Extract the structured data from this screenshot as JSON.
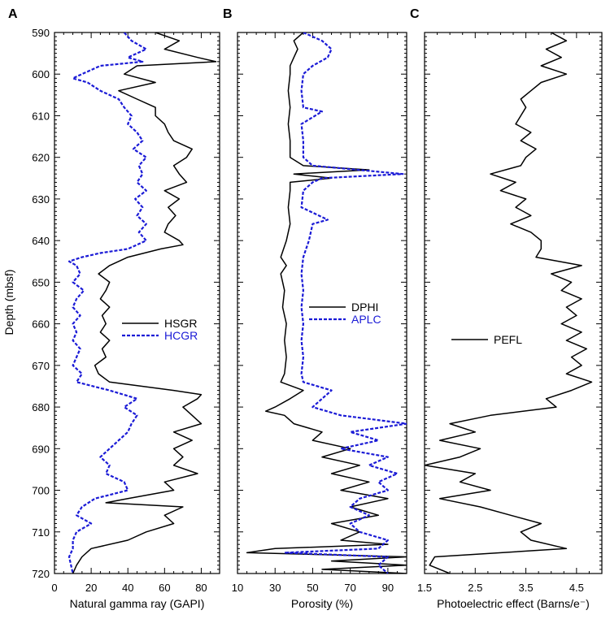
{
  "figure": {
    "yaxis_label": "Depth (mbsf)",
    "y_ticks": [
      590,
      600,
      610,
      620,
      630,
      640,
      650,
      660,
      670,
      680,
      690,
      700,
      710,
      720
    ]
  },
  "chart_data": [
    {
      "type": "line",
      "panel_label": "A",
      "xlabel": "Natural gamma ray (GAPI)",
      "ylabel": "Depth (mbsf)",
      "xlim": [
        0,
        90
      ],
      "ylim": [
        590,
        720
      ],
      "y_inverted": true,
      "x_ticks": [
        0,
        20,
        40,
        60,
        80
      ],
      "legend_position": "middle-right",
      "series": [
        {
          "name": "HSGR",
          "color": "#000000",
          "dash": "solid",
          "depth": [
            590,
            592,
            594,
            596,
            597,
            598,
            600,
            602,
            604,
            606,
            608,
            610,
            612,
            614,
            616,
            618,
            620,
            622,
            624,
            626,
            628,
            630,
            632,
            634,
            636,
            638,
            640,
            641,
            642,
            644,
            646,
            648,
            650,
            652,
            654,
            656,
            658,
            660,
            662,
            664,
            666,
            668,
            670,
            672,
            674,
            676,
            677,
            678,
            680,
            682,
            684,
            686,
            688,
            690,
            692,
            694,
            696,
            698,
            700,
            702,
            703,
            704,
            706,
            708,
            710,
            712,
            714,
            716,
            718,
            720
          ],
          "values": [
            55,
            68,
            60,
            78,
            88,
            45,
            38,
            55,
            35,
            45,
            55,
            55,
            60,
            62,
            65,
            75,
            72,
            65,
            68,
            72,
            60,
            68,
            62,
            66,
            62,
            60,
            68,
            70,
            58,
            40,
            30,
            24,
            30,
            28,
            25,
            30,
            26,
            28,
            25,
            30,
            26,
            28,
            22,
            24,
            30,
            65,
            80,
            78,
            70,
            75,
            80,
            65,
            75,
            65,
            70,
            65,
            78,
            60,
            65,
            40,
            28,
            70,
            60,
            65,
            50,
            40,
            20,
            15,
            12,
            10
          ]
        },
        {
          "name": "HCGR",
          "color": "#1a1ad6",
          "dash": "dashed",
          "depth": [
            590,
            592,
            594,
            596,
            597,
            598,
            600,
            601,
            602,
            604,
            606,
            608,
            610,
            612,
            614,
            616,
            618,
            620,
            622,
            624,
            626,
            628,
            630,
            632,
            634,
            636,
            638,
            640,
            642,
            643,
            644,
            645,
            646,
            648,
            650,
            652,
            654,
            656,
            658,
            660,
            662,
            664,
            666,
            668,
            670,
            672,
            674,
            676,
            678,
            680,
            682,
            684,
            686,
            688,
            690,
            692,
            694,
            696,
            698,
            700,
            702,
            704,
            706,
            708,
            710,
            712,
            714,
            716,
            718,
            720
          ],
          "values": [
            38,
            42,
            50,
            40,
            48,
            25,
            15,
            10,
            18,
            25,
            35,
            38,
            42,
            40,
            45,
            48,
            43,
            50,
            46,
            48,
            45,
            50,
            44,
            48,
            45,
            50,
            46,
            50,
            40,
            25,
            15,
            8,
            12,
            14,
            10,
            16,
            12,
            10,
            14,
            10,
            12,
            10,
            14,
            12,
            10,
            15,
            12,
            30,
            45,
            38,
            45,
            42,
            40,
            35,
            30,
            25,
            30,
            28,
            38,
            40,
            22,
            15,
            12,
            20,
            12,
            10,
            10,
            8,
            9,
            10
          ]
        }
      ]
    },
    {
      "type": "line",
      "panel_label": "B",
      "xlabel": "Porosity (%)",
      "ylabel": "",
      "xlim": [
        10,
        100
      ],
      "ylim": [
        590,
        720
      ],
      "y_inverted": true,
      "x_ticks": [
        10,
        30,
        50,
        70,
        90
      ],
      "legend_position": "middle-right",
      "series": [
        {
          "name": "DPHI",
          "color": "#000000",
          "dash": "solid",
          "depth": [
            590,
            592,
            594,
            596,
            598,
            600,
            604,
            608,
            612,
            616,
            620,
            622,
            623,
            624,
            625,
            626,
            628,
            632,
            636,
            640,
            644,
            646,
            648,
            652,
            656,
            660,
            664,
            668,
            672,
            674,
            676,
            678,
            680,
            681,
            682,
            684,
            686,
            688,
            690,
            692,
            694,
            696,
            698,
            700,
            702,
            704,
            706,
            708,
            710,
            712,
            713,
            714,
            715,
            716,
            717,
            718,
            719,
            720
          ],
          "values": [
            45,
            40,
            42,
            40,
            38,
            38,
            37,
            38,
            37,
            38,
            38,
            45,
            80,
            40,
            60,
            38,
            38,
            37,
            38,
            36,
            33,
            36,
            33,
            35,
            34,
            36,
            35,
            36,
            35,
            33,
            45,
            38,
            30,
            25,
            35,
            40,
            55,
            50,
            70,
            55,
            75,
            60,
            80,
            65,
            90,
            70,
            85,
            60,
            75,
            65,
            90,
            30,
            15,
            100,
            60,
            100,
            55,
            100
          ]
        },
        {
          "name": "APLC",
          "color": "#1a1ad6",
          "dash": "dashed",
          "depth": [
            590,
            592,
            594,
            596,
            598,
            600,
            604,
            608,
            609,
            612,
            616,
            620,
            622,
            624,
            625,
            626,
            628,
            632,
            635,
            636,
            640,
            644,
            648,
            652,
            656,
            660,
            664,
            668,
            672,
            674,
            676,
            678,
            680,
            682,
            684,
            686,
            688,
            690,
            692,
            694,
            696,
            698,
            700,
            702,
            704,
            706,
            708,
            710,
            712,
            714,
            715,
            716,
            718,
            720
          ],
          "values": [
            45,
            55,
            60,
            58,
            50,
            45,
            44,
            45,
            55,
            44,
            45,
            45,
            50,
            98,
            55,
            50,
            45,
            44,
            58,
            50,
            48,
            45,
            44,
            45,
            44,
            45,
            44,
            45,
            44,
            45,
            60,
            55,
            50,
            65,
            100,
            70,
            85,
            65,
            90,
            80,
            95,
            85,
            90,
            75,
            70,
            80,
            70,
            75,
            90,
            85,
            35,
            90,
            85,
            90
          ]
        }
      ]
    },
    {
      "type": "line",
      "panel_label": "C",
      "xlabel": "Photoelectric effect (Barns/e⁻)",
      "ylabel": "",
      "xlim": [
        1.5,
        5.0
      ],
      "ylim": [
        590,
        720
      ],
      "y_inverted": true,
      "x_ticks": [
        1.5,
        2.5,
        3.5,
        4.5
      ],
      "legend_position": "middle-left",
      "series": [
        {
          "name": "PEFL",
          "color": "#000000",
          "dash": "solid",
          "depth": [
            590,
            592,
            594,
            596,
            598,
            600,
            602,
            604,
            606,
            608,
            610,
            612,
            614,
            616,
            618,
            620,
            622,
            624,
            626,
            628,
            630,
            632,
            634,
            636,
            638,
            640,
            642,
            644,
            646,
            648,
            650,
            652,
            654,
            656,
            658,
            660,
            662,
            664,
            666,
            668,
            670,
            672,
            674,
            676,
            678,
            680,
            682,
            684,
            686,
            688,
            690,
            692,
            694,
            696,
            698,
            700,
            702,
            704,
            706,
            708,
            710,
            712,
            714,
            716,
            718,
            720
          ],
          "values": [
            4.0,
            4.3,
            3.9,
            4.2,
            3.8,
            4.3,
            3.8,
            3.6,
            3.4,
            3.5,
            3.4,
            3.3,
            3.6,
            3.4,
            3.7,
            3.5,
            3.4,
            2.8,
            3.3,
            3.0,
            3.5,
            3.3,
            3.6,
            3.2,
            3.6,
            3.8,
            3.8,
            3.7,
            4.6,
            4.0,
            4.4,
            4.2,
            4.6,
            4.3,
            4.5,
            4.2,
            4.6,
            4.3,
            4.7,
            4.4,
            4.6,
            4.3,
            4.8,
            4.4,
            3.9,
            4.1,
            2.8,
            2.0,
            2.5,
            1.8,
            2.6,
            2.2,
            1.5,
            2.5,
            2.2,
            2.8,
            1.8,
            2.6,
            3.2,
            3.8,
            3.4,
            3.6,
            4.3,
            1.7,
            1.6,
            2.0
          ]
        }
      ]
    }
  ]
}
